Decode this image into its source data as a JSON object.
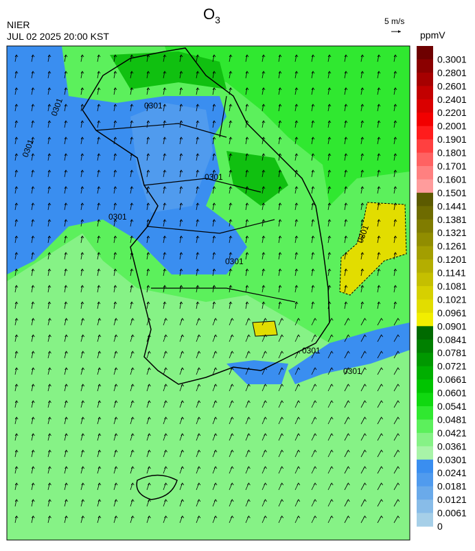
{
  "header": {
    "agency": "NIER",
    "datetime": "JUL 02 2025 20:00 KST",
    "title": "O",
    "title_sub": "3"
  },
  "wind_key": {
    "label": "5 m/s"
  },
  "legend": {
    "unit": "ppmV",
    "items": [
      {
        "label": "0.3001",
        "color": "#6e0000"
      },
      {
        "label": "0.2801",
        "color": "#8b0000"
      },
      {
        "label": "0.2601",
        "color": "#a60000"
      },
      {
        "label": "0.2401",
        "color": "#c20000"
      },
      {
        "label": "0.2201",
        "color": "#da0000"
      },
      {
        "label": "0.2001",
        "color": "#f20000"
      },
      {
        "label": "0.1901",
        "color": "#ff1c1c"
      },
      {
        "label": "0.1801",
        "color": "#ff4040"
      },
      {
        "label": "0.1701",
        "color": "#ff6262"
      },
      {
        "label": "0.1601",
        "color": "#ff8080"
      },
      {
        "label": "0.1501",
        "color": "#ff9c9c"
      },
      {
        "label": "0.1441",
        "color": "#5c5a00"
      },
      {
        "label": "0.1381",
        "color": "#6e6b00"
      },
      {
        "label": "0.1321",
        "color": "#807c00"
      },
      {
        "label": "0.1261",
        "color": "#918d00"
      },
      {
        "label": "0.1201",
        "color": "#a39e00"
      },
      {
        "label": "0.1141",
        "color": "#b4ae00"
      },
      {
        "label": "0.1081",
        "color": "#c5bf00"
      },
      {
        "label": "0.1021",
        "color": "#d6d000"
      },
      {
        "label": "0.0961",
        "color": "#e2dd00"
      },
      {
        "label": "0.0901",
        "color": "#f2ee00"
      },
      {
        "label": "0.0841",
        "color": "#006a00"
      },
      {
        "label": "0.0781",
        "color": "#008000"
      },
      {
        "label": "0.0721",
        "color": "#009800"
      },
      {
        "label": "0.0661",
        "color": "#00ae00"
      },
      {
        "label": "0.0601",
        "color": "#00c400"
      },
      {
        "label": "0.0541",
        "color": "#10d810"
      },
      {
        "label": "0.0481",
        "color": "#30e830"
      },
      {
        "label": "0.0421",
        "color": "#5cf05c"
      },
      {
        "label": "0.0361",
        "color": "#86f286"
      },
      {
        "label": "0.0301",
        "color": "#a8f4a8"
      },
      {
        "label": "0.0241",
        "color": "#3a8ef0"
      },
      {
        "label": "0.0181",
        "color": "#509bee"
      },
      {
        "label": "0.0121",
        "color": "#6aaaea"
      },
      {
        "label": "0.0061",
        "color": "#88bce8"
      },
      {
        "label": "0",
        "color": "#a6cfe8"
      }
    ]
  },
  "contour_labels": [
    "0301",
    "0301",
    "0301",
    "0301",
    "0301",
    "0301",
    "0301",
    "0301",
    "0301"
  ]
}
